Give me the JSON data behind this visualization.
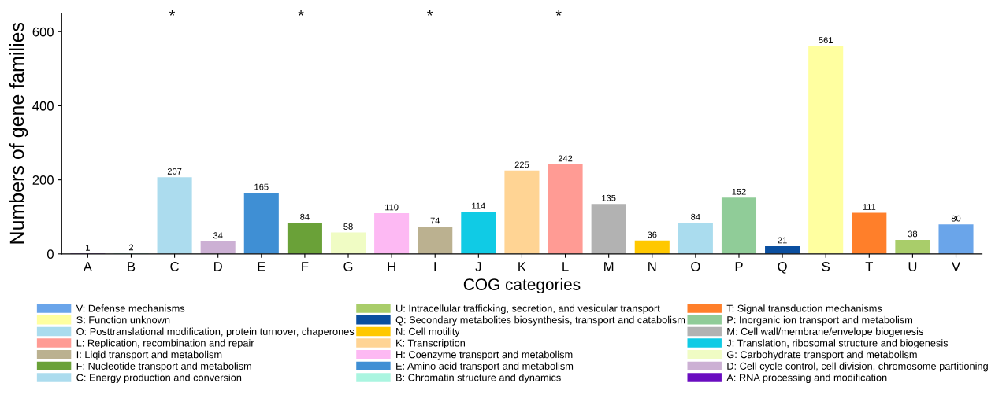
{
  "chart_data": {
    "type": "bar",
    "xlabel": "COG categories",
    "ylabel": "Numbers of gene families",
    "categories": [
      "A",
      "B",
      "C",
      "D",
      "E",
      "F",
      "G",
      "H",
      "I",
      "J",
      "K",
      "L",
      "M",
      "N",
      "O",
      "P",
      "Q",
      "S",
      "T",
      "U",
      "V"
    ],
    "series": [
      {
        "name": "V: Defense mechanisms",
        "color": "#6aa5ea",
        "values": [
          null,
          null,
          null,
          null,
          null,
          null,
          null,
          null,
          null,
          null,
          null,
          null,
          null,
          null,
          null,
          null,
          null,
          null,
          null,
          null,
          80
        ]
      },
      {
        "name": "S: Function unknown",
        "color": "#ffffa0",
        "values": [
          null,
          null,
          null,
          null,
          null,
          null,
          null,
          null,
          null,
          null,
          null,
          null,
          null,
          null,
          null,
          null,
          null,
          561,
          null,
          null,
          null
        ]
      },
      {
        "name": "O: Posttranslational modification, protein turnover, chaperones",
        "color": "#aadcee",
        "values": [
          null,
          null,
          null,
          null,
          null,
          null,
          null,
          null,
          null,
          null,
          null,
          null,
          null,
          null,
          84,
          null,
          null,
          null,
          null,
          null,
          null
        ]
      },
      {
        "name": "L: Replication, recombination and repair",
        "color": "#ff9b94",
        "values": [
          null,
          null,
          null,
          null,
          null,
          null,
          null,
          null,
          null,
          null,
          null,
          242,
          null,
          null,
          null,
          null,
          null,
          null,
          null,
          null,
          null
        ]
      },
      {
        "name": "I: Liqid transport and metabolism",
        "color": "#bbb190",
        "values": [
          null,
          null,
          null,
          null,
          null,
          null,
          null,
          null,
          74,
          null,
          null,
          null,
          null,
          null,
          null,
          null,
          null,
          null,
          null,
          null,
          null
        ]
      },
      {
        "name": "F: Nucleotide transport and metabolism",
        "color": "#6aa138",
        "values": [
          null,
          null,
          null,
          null,
          null,
          84,
          null,
          null,
          null,
          null,
          null,
          null,
          null,
          null,
          null,
          null,
          null,
          null,
          null,
          null,
          null
        ]
      },
      {
        "name": "C: Energy production and conversion",
        "color": "#acdcee",
        "values": [
          null,
          null,
          207,
          null,
          null,
          null,
          null,
          null,
          null,
          null,
          null,
          null,
          null,
          null,
          null,
          null,
          null,
          null,
          null,
          null,
          null
        ]
      },
      {
        "name": "U: Intracellular trafficking, secretion, and vesicular transport",
        "color": "#a9cd6a",
        "values": [
          null,
          null,
          null,
          null,
          null,
          null,
          null,
          null,
          null,
          null,
          null,
          null,
          null,
          null,
          null,
          null,
          null,
          null,
          null,
          38,
          null
        ]
      },
      {
        "name": "Q: Secondary metabolites biosynthesis, transport and catabolism",
        "color": "#0a4fa0",
        "values": [
          null,
          null,
          null,
          null,
          null,
          null,
          null,
          null,
          null,
          null,
          null,
          null,
          null,
          null,
          null,
          null,
          21,
          null,
          null,
          null,
          null
        ]
      },
      {
        "name": "N: Cell motility",
        "color": "#ffc800",
        "values": [
          null,
          null,
          null,
          null,
          null,
          null,
          null,
          null,
          null,
          null,
          null,
          null,
          null,
          36,
          null,
          null,
          null,
          null,
          null,
          null,
          null
        ]
      },
      {
        "name": "K: Transcription",
        "color": "#ffd494",
        "values": [
          null,
          null,
          null,
          null,
          null,
          null,
          null,
          null,
          null,
          null,
          225,
          null,
          null,
          null,
          null,
          null,
          null,
          null,
          null,
          null,
          null
        ]
      },
      {
        "name": "H: Coenzyme transport and metabolism",
        "color": "#fdb9f3",
        "values": [
          null,
          null,
          null,
          null,
          null,
          null,
          null,
          110,
          null,
          null,
          null,
          null,
          null,
          null,
          null,
          null,
          null,
          null,
          null,
          null,
          null
        ]
      },
      {
        "name": "E: Amino acid transport and metabolism",
        "color": "#3f8fd4",
        "values": [
          null,
          null,
          null,
          null,
          165,
          null,
          null,
          null,
          null,
          null,
          null,
          null,
          null,
          null,
          null,
          null,
          null,
          null,
          null,
          null,
          null
        ]
      },
      {
        "name": "B: Chromatin structure and dynamics",
        "color": "#aaf5e0",
        "values": [
          null,
          2,
          null,
          null,
          null,
          null,
          null,
          null,
          null,
          null,
          null,
          null,
          null,
          null,
          null,
          null,
          null,
          null,
          null,
          null,
          null
        ]
      },
      {
        "name": "T: Signal transduction mechanisms",
        "color": "#ff7f2a",
        "values": [
          null,
          null,
          null,
          null,
          null,
          null,
          null,
          null,
          null,
          null,
          null,
          null,
          null,
          null,
          null,
          null,
          null,
          null,
          111,
          null,
          null
        ]
      },
      {
        "name": "P: Inorganic ion transport and metabolism",
        "color": "#90cc98",
        "values": [
          null,
          null,
          null,
          null,
          null,
          null,
          null,
          null,
          null,
          null,
          null,
          null,
          null,
          null,
          null,
          152,
          null,
          null,
          null,
          null,
          null
        ]
      },
      {
        "name": "M: Cell wall/membrane/envelope biogenesis",
        "color": "#b2b2b2",
        "values": [
          null,
          null,
          null,
          null,
          null,
          null,
          null,
          null,
          null,
          null,
          null,
          null,
          135,
          null,
          null,
          null,
          null,
          null,
          null,
          null,
          null
        ]
      },
      {
        "name": "J: Translation, ribosomal structure and biogenesis",
        "color": "#10cbe5",
        "values": [
          null,
          null,
          null,
          null,
          null,
          null,
          null,
          null,
          null,
          114,
          null,
          null,
          null,
          null,
          null,
          null,
          null,
          null,
          null,
          null,
          null
        ]
      },
      {
        "name": "G: Carbohydrate transport and metabolism",
        "color": "#f0fcc4",
        "values": [
          null,
          null,
          null,
          null,
          null,
          null,
          58,
          null,
          null,
          null,
          null,
          null,
          null,
          null,
          null,
          null,
          null,
          null,
          null,
          null,
          null
        ]
      },
      {
        "name": "D: Cell cycle control, cell division, chromosome partitioning",
        "color": "#ccb0d4",
        "values": [
          null,
          null,
          null,
          34,
          null,
          null,
          null,
          null,
          null,
          null,
          null,
          null,
          null,
          null,
          null,
          null,
          null,
          null,
          null,
          null,
          null
        ]
      },
      {
        "name": "A: RNA processing and modification",
        "color": "#6a0dc0",
        "values": [
          1,
          null,
          null,
          null,
          null,
          null,
          null,
          null,
          null,
          null,
          null,
          null,
          null,
          null,
          null,
          null,
          null,
          null,
          null,
          null,
          null
        ]
      }
    ],
    "ylim": [
      0,
      650
    ],
    "yticks": [
      0,
      200,
      400,
      600
    ],
    "data_labels": true,
    "grid": false,
    "legend": "bottom",
    "annotations": [
      "*",
      "*",
      "*",
      "*"
    ]
  }
}
